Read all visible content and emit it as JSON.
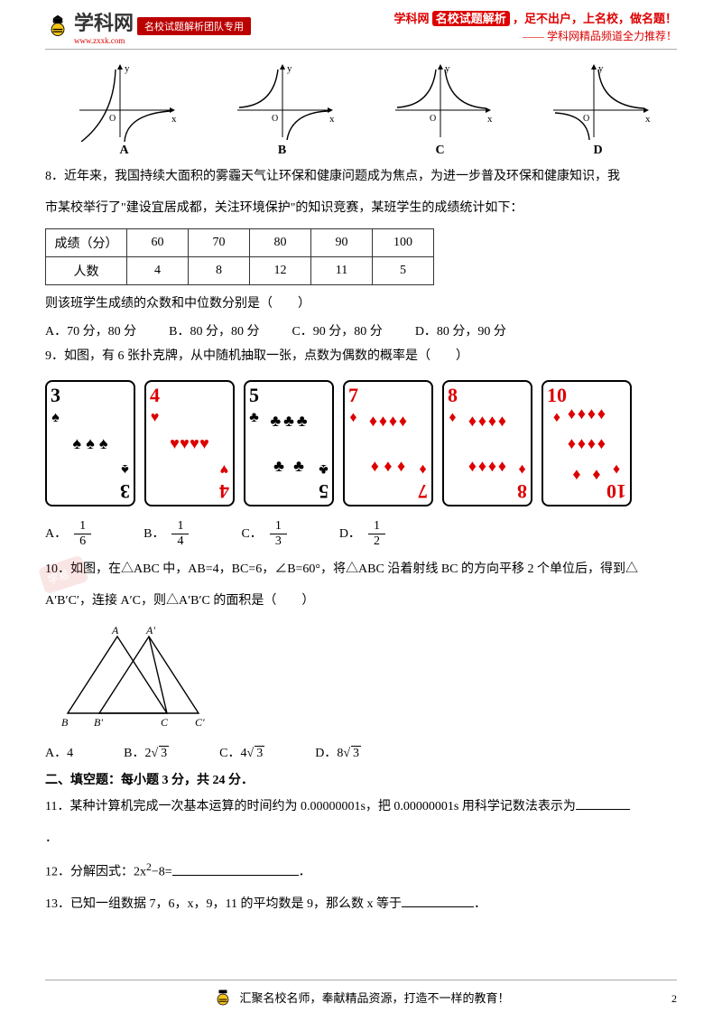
{
  "header": {
    "logo_text": "学科网",
    "logo_url": "www.zxxk.com",
    "tag": "名校试题解析团队专用",
    "right_line1_a": "学科网",
    "right_line1_b": "名校试题解析",
    "right_line1_c": "，足不出户，上名校，做名题！",
    "right_line2": "—— 学科网精品频道全力推荐！"
  },
  "q7": {
    "labels": [
      "A",
      "B",
      "C",
      "D"
    ],
    "axis_y": "y",
    "axis_x": "x",
    "origin": "O",
    "curve_color": "#000000",
    "axis_color": "#000000"
  },
  "q8": {
    "text1": "8．近年来，我国持续大面积的雾霾天气让环保和健康问题成为焦点，为进一步普及环保和健康知识，我",
    "text2": "市某校举行了\"建设宜居成都，关注环境保护\"的知识竞赛，某班学生的成绩统计如下：",
    "row_headers": [
      "成绩（分）",
      "人数"
    ],
    "scores": [
      "60",
      "70",
      "80",
      "90",
      "100"
    ],
    "counts": [
      "4",
      "8",
      "12",
      "11",
      "5"
    ],
    "q": "则该班学生成绩的众数和中位数分别是（　　）",
    "opts": [
      "A．70 分，80 分",
      "B．80 分，80 分",
      "C．90 分，80 分",
      "D．80 分，90 分"
    ]
  },
  "q9": {
    "text": "9．如图，有 6 张扑克牌，从中随机抽取一张，点数为偶数的概率是（　　）",
    "cards": [
      {
        "rank": "3",
        "suit": "♠",
        "color": "black",
        "pips": 3
      },
      {
        "rank": "4",
        "suit": "♥",
        "color": "red",
        "pips": 4
      },
      {
        "rank": "5",
        "suit": "♣",
        "color": "black",
        "pips": 5
      },
      {
        "rank": "7",
        "suit": "♦",
        "color": "red",
        "pips": 7
      },
      {
        "rank": "8",
        "suit": "♦",
        "color": "red",
        "pips": 8
      },
      {
        "rank": "10",
        "suit": "♦",
        "color": "red",
        "pips": 10
      }
    ],
    "opt_labels": [
      "A．",
      "B．",
      "C．",
      "D．"
    ],
    "fracs": [
      [
        "1",
        "6"
      ],
      [
        "1",
        "4"
      ],
      [
        "1",
        "3"
      ],
      [
        "1",
        "2"
      ]
    ]
  },
  "q10": {
    "text1": "10．如图，在△ABC 中，AB=4，BC=6，∠B=60°，将△ABC 沿着射线 BC 的方向平移 2 个单位后，得到△",
    "text2": "A′B′C′，连接 A′C，则△A′B′C 的面积是（　　）",
    "fig_labels": {
      "A": "A",
      "Ap": "A'",
      "B": "B",
      "Bp": "B'",
      "C": "C",
      "Cp": "C'"
    },
    "opts_prefix": [
      "A．",
      "B．",
      "C．",
      "D．"
    ],
    "opts_val": [
      "4",
      "2",
      "4",
      "8"
    ],
    "sqrt_val": "3"
  },
  "sec2": {
    "header": "二、填空题：每小题 3 分，共 24 分．",
    "q11": "11．某种计算机完成一次基本运算的时间约为 0.00000001s，把 0.00000001s 用科学记数法表示为",
    "q11_end": "．",
    "q12a": "12．分解因式：2x",
    "q12_sup": "2",
    "q12b": "−8=",
    "q12_end": "．",
    "q13a": "13．已知一组数据 7，6，x，9，11 的平均数是 9，那么数 x 等于",
    "q13_end": "．"
  },
  "footer": {
    "text": "汇聚名校名师，奉献精品资源，打造不一样的教育！",
    "page": "2"
  },
  "colors": {
    "red": "#d00000",
    "black": "#000000",
    "border": "#333333"
  }
}
